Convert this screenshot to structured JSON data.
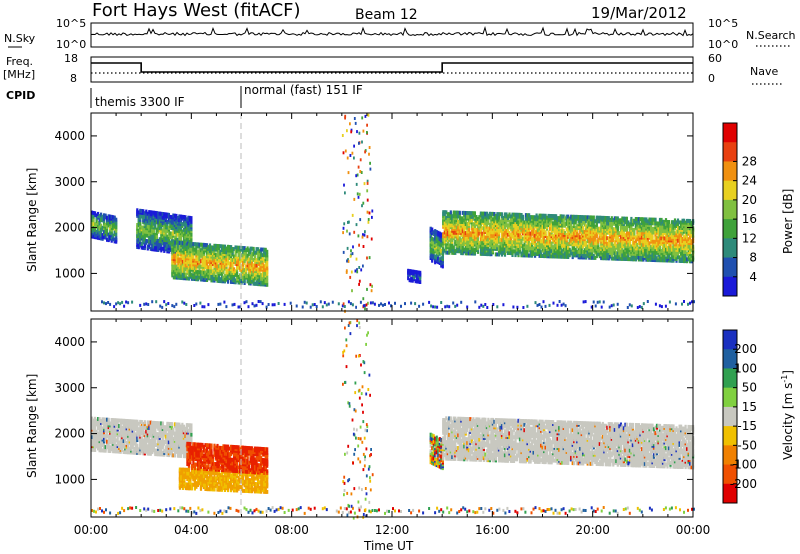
{
  "header": {
    "station": "Fort Hays West (fitACF)",
    "beam": "Beam 12",
    "date": "19/Mar/2012"
  },
  "top_panels": {
    "nsky_label": "N.Sky",
    "nsky_ticks": [
      "10^5",
      "10^0"
    ],
    "nsearch_label": "N.Search",
    "nsearch_ticks": [
      "10^5",
      "10^0"
    ],
    "freq_label": "Freq.",
    "freq_unit": "[MHz]",
    "freq_ticks": [
      "18",
      "8"
    ],
    "nave_label": "Nave",
    "nave_ticks": [
      "60",
      "0"
    ],
    "cpid_label": "CPID",
    "cpid_segments": [
      {
        "label": "themis 3300 IF",
        "start_hour": 0,
        "end_hour": 6
      },
      {
        "label": "normal (fast) 151 IF",
        "start_hour": 6,
        "end_hour": 24
      }
    ]
  },
  "chart_data": [
    {
      "type": "heatmap",
      "title": "Power",
      "ylabel": "Slant Range [km]",
      "xlabel": "",
      "ylim": [
        180,
        4500
      ],
      "xlim_hours": [
        0,
        24
      ],
      "yticks": [
        "1000",
        "2000",
        "3000",
        "4000"
      ],
      "colorbar": {
        "label": "Power [dB]",
        "ticks": [
          "4",
          "8",
          "12",
          "16",
          "20",
          "24",
          "28"
        ],
        "colors": [
          "#1a1ad8",
          "#2050b0",
          "#2e8a7a",
          "#3fa23a",
          "#80c040",
          "#e8d020",
          "#f09010",
          "#e84010",
          "#e00000"
        ]
      },
      "regions": [
        {
          "t_start": 0.0,
          "t_end": 1.0,
          "r_min": 1650,
          "r_max": 2450,
          "level": "medium"
        },
        {
          "t_start": 1.8,
          "t_end": 4.0,
          "r_min": 1350,
          "r_max": 2500,
          "level": "medium"
        },
        {
          "t_start": 3.2,
          "t_end": 7.0,
          "r_min": 700,
          "r_max": 1800,
          "level": "high"
        },
        {
          "t_start": 12.6,
          "t_end": 13.1,
          "r_min": 800,
          "r_max": 1100,
          "level": "low"
        },
        {
          "t_start": 13.5,
          "t_end": 14.0,
          "r_min": 1100,
          "r_max": 2100,
          "level": "medium"
        },
        {
          "t_start": 14.0,
          "t_end": 24.0,
          "r_min": 1200,
          "r_max": 2500,
          "level": "high"
        }
      ]
    },
    {
      "type": "heatmap",
      "title": "Velocity",
      "ylabel": "Slant Range [km]",
      "xlabel": "Time UT",
      "ylim": [
        180,
        4500
      ],
      "xlim_hours": [
        0,
        24
      ],
      "yticks": [
        "1000",
        "2000",
        "3000",
        "4000"
      ],
      "xticks": [
        "00:00",
        "04:00",
        "08:00",
        "12:00",
        "16:00",
        "20:00",
        "00:00"
      ],
      "colorbar": {
        "label": "Velocity [m s",
        "label_sup": "-1",
        "label_end": "]",
        "ticks": [
          "200",
          "100",
          "50",
          "15",
          "-15",
          "-50",
          "-100",
          "-200"
        ],
        "colors": [
          "#1a30c0",
          "#2060a0",
          "#30a050",
          "#80d040",
          "#c8c8c0",
          "#f0c000",
          "#f08000",
          "#f05000",
          "#e00000"
        ]
      },
      "regions": [
        {
          "t_start": 0.0,
          "t_end": 4.0,
          "r_min": 1450,
          "r_max": 2450,
          "category": "ground"
        },
        {
          "t_start": 3.5,
          "t_end": 7.0,
          "r_min": 700,
          "r_max": 1300,
          "category": "slow-negative"
        },
        {
          "t_start": 3.8,
          "t_end": 7.0,
          "r_min": 1100,
          "r_max": 1900,
          "category": "fast-negative"
        },
        {
          "t_start": 13.5,
          "t_end": 14.0,
          "r_min": 1200,
          "r_max": 2100,
          "category": "mixed"
        },
        {
          "t_start": 14.0,
          "t_end": 24.0,
          "r_min": 1200,
          "r_max": 2500,
          "category": "ground"
        }
      ]
    }
  ]
}
